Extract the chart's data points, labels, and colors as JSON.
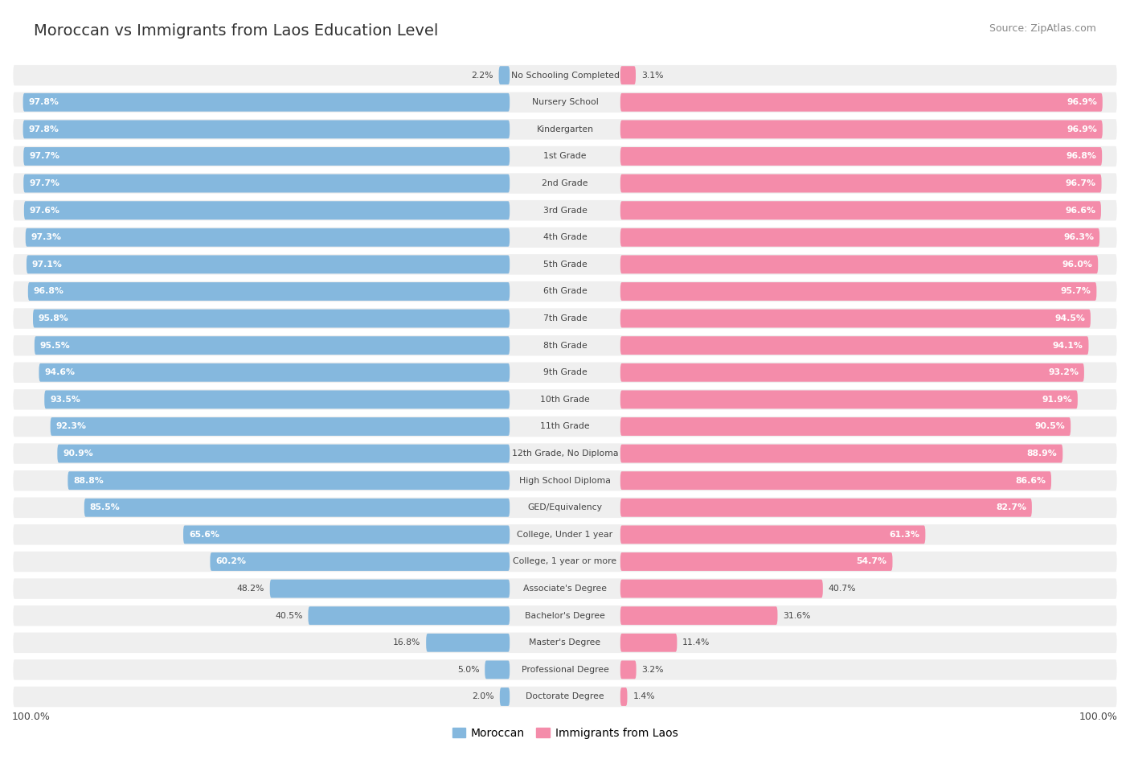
{
  "title": "Moroccan vs Immigrants from Laos Education Level",
  "source": "Source: ZipAtlas.com",
  "categories": [
    "No Schooling Completed",
    "Nursery School",
    "Kindergarten",
    "1st Grade",
    "2nd Grade",
    "3rd Grade",
    "4th Grade",
    "5th Grade",
    "6th Grade",
    "7th Grade",
    "8th Grade",
    "9th Grade",
    "10th Grade",
    "11th Grade",
    "12th Grade, No Diploma",
    "High School Diploma",
    "GED/Equivalency",
    "College, Under 1 year",
    "College, 1 year or more",
    "Associate's Degree",
    "Bachelor's Degree",
    "Master's Degree",
    "Professional Degree",
    "Doctorate Degree"
  ],
  "moroccan": [
    2.2,
    97.8,
    97.8,
    97.7,
    97.7,
    97.6,
    97.3,
    97.1,
    96.8,
    95.8,
    95.5,
    94.6,
    93.5,
    92.3,
    90.9,
    88.8,
    85.5,
    65.6,
    60.2,
    48.2,
    40.5,
    16.8,
    5.0,
    2.0
  ],
  "laos": [
    3.1,
    96.9,
    96.9,
    96.8,
    96.7,
    96.6,
    96.3,
    96.0,
    95.7,
    94.5,
    94.1,
    93.2,
    91.9,
    90.5,
    88.9,
    86.6,
    82.7,
    61.3,
    54.7,
    40.7,
    31.6,
    11.4,
    3.2,
    1.4
  ],
  "moroccan_color": "#85b8de",
  "laos_color": "#f48caa",
  "row_bg_color": "#efefef",
  "row_line_color": "#ffffff",
  "legend_moroccan": "Moroccan",
  "legend_laos": "Immigrants from Laos",
  "text_white": "#ffffff",
  "text_dark": "#444444",
  "title_color": "#333333",
  "source_color": "#888888"
}
